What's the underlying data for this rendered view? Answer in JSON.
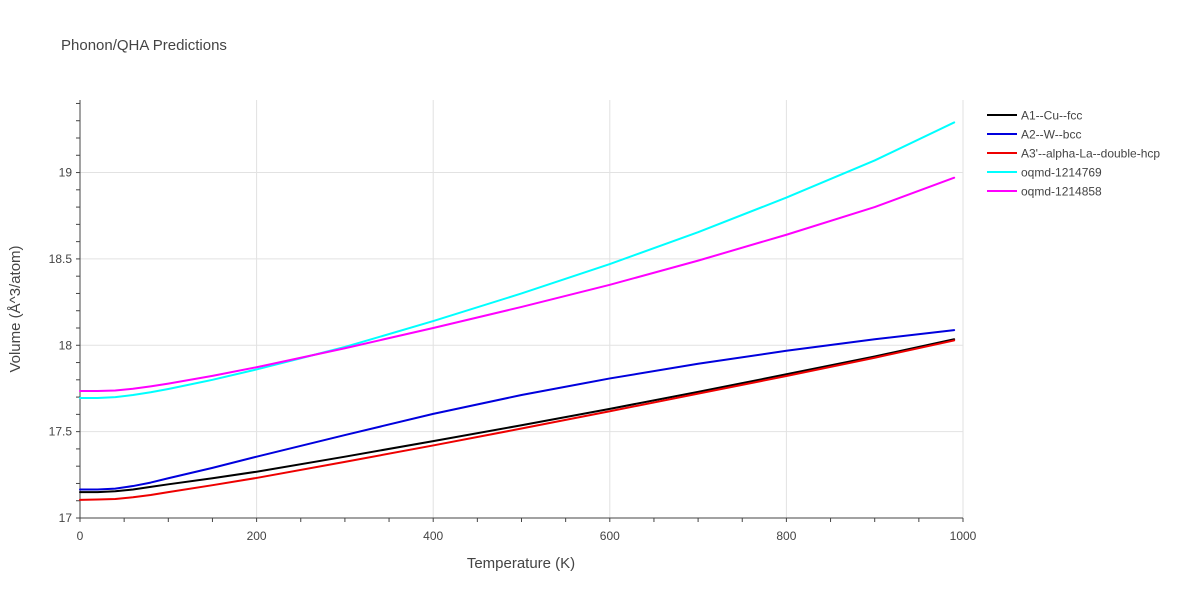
{
  "chart_data": {
    "type": "line",
    "title": "Phonon/QHA Predictions",
    "xlabel": "Temperature (K)",
    "ylabel": "Volume (Å^3/atom)",
    "xlim": [
      0,
      1000
    ],
    "ylim": [
      17,
      19.42
    ],
    "x_ticks": [
      0,
      200,
      400,
      600,
      800,
      1000
    ],
    "y_ticks": [
      17,
      17.5,
      18,
      18.5,
      19
    ],
    "x_tick_labels": [
      "0",
      "200",
      "400",
      "600",
      "800",
      "1000"
    ],
    "y_tick_labels": [
      "17",
      "17.5",
      "18",
      "18.5",
      "19"
    ],
    "grid": true,
    "legend_position": "top-right",
    "series": [
      {
        "name": "A1--Cu--fcc",
        "color": "#000000",
        "x": [
          0,
          20,
          40,
          60,
          80,
          100,
          150,
          200,
          300,
          400,
          500,
          600,
          700,
          800,
          900,
          990
        ],
        "y": [
          17.15,
          17.15,
          17.155,
          17.165,
          17.18,
          17.195,
          17.23,
          17.268,
          17.355,
          17.445,
          17.537,
          17.632,
          17.73,
          17.832,
          17.935,
          18.035
        ]
      },
      {
        "name": "A2--W--bcc",
        "color": "#0000dd",
        "x": [
          0,
          20,
          40,
          60,
          80,
          100,
          150,
          200,
          300,
          400,
          500,
          600,
          700,
          800,
          900,
          990
        ],
        "y": [
          17.165,
          17.165,
          17.17,
          17.185,
          17.205,
          17.23,
          17.29,
          17.355,
          17.48,
          17.603,
          17.712,
          17.808,
          17.893,
          17.968,
          18.035,
          18.088
        ]
      },
      {
        "name": "A3'--alpha-La--double-hcp",
        "color": "#ee0000",
        "x": [
          0,
          20,
          40,
          60,
          80,
          100,
          150,
          200,
          300,
          400,
          500,
          600,
          700,
          800,
          900,
          990
        ],
        "y": [
          17.105,
          17.107,
          17.11,
          17.12,
          17.133,
          17.15,
          17.19,
          17.232,
          17.325,
          17.42,
          17.518,
          17.618,
          17.72,
          17.822,
          17.928,
          18.028
        ]
      },
      {
        "name": "oqmd-1214769",
        "color": "#00ffff",
        "x": [
          0,
          20,
          40,
          60,
          80,
          100,
          150,
          200,
          250,
          300,
          400,
          500,
          600,
          700,
          800,
          900,
          990
        ],
        "y": [
          17.695,
          17.695,
          17.7,
          17.712,
          17.728,
          17.747,
          17.8,
          17.86,
          17.925,
          17.99,
          18.14,
          18.3,
          18.47,
          18.655,
          18.855,
          19.07,
          19.29
        ]
      },
      {
        "name": "oqmd-1214858",
        "color": "#ff00ff",
        "x": [
          0,
          20,
          40,
          60,
          80,
          100,
          150,
          200,
          250,
          300,
          400,
          500,
          600,
          700,
          800,
          900,
          990
        ],
        "y": [
          17.735,
          17.735,
          17.738,
          17.748,
          17.762,
          17.778,
          17.823,
          17.873,
          17.928,
          17.983,
          18.1,
          18.222,
          18.35,
          18.49,
          18.64,
          18.8,
          18.97
        ]
      }
    ]
  }
}
